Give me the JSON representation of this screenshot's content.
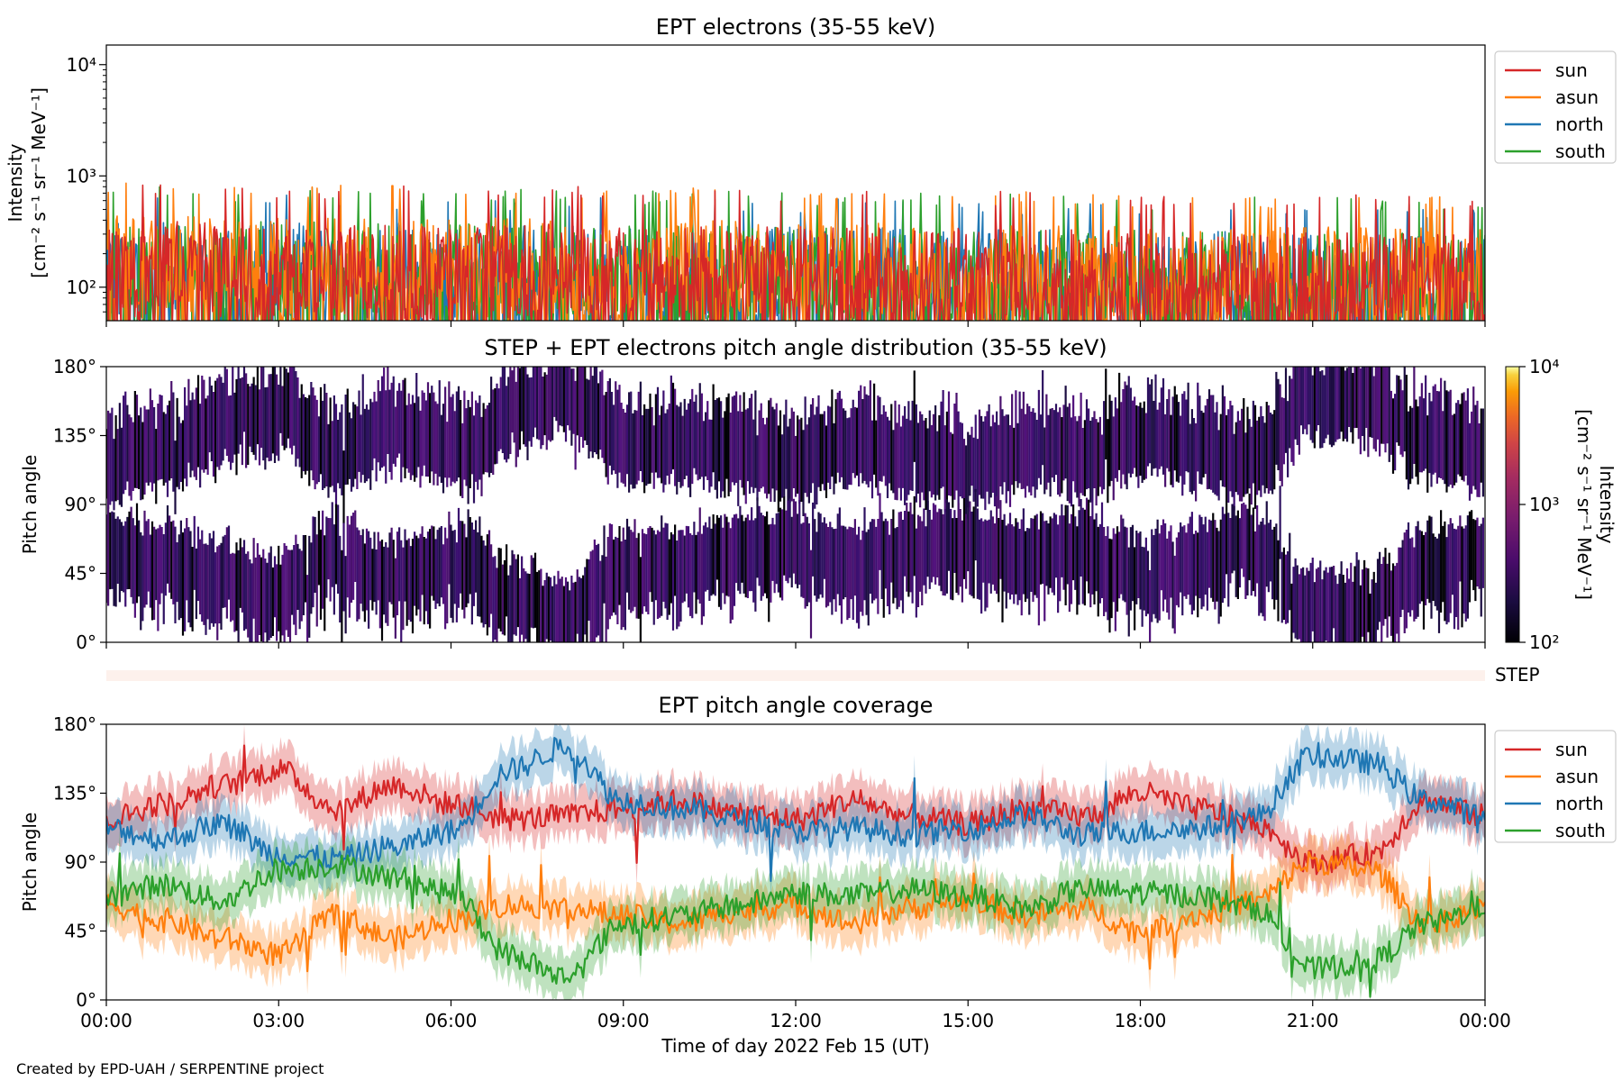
{
  "credit": "Created by EPD-UAH / SERPENTINE project",
  "colors": {
    "sun": "#d62728",
    "asun": "#ff7f0e",
    "north": "#1f77b4",
    "south": "#2ca02c"
  },
  "chart_data": [
    {
      "type": "line",
      "title": "EPT electrons (35-55 keV)",
      "ylabel_lines": [
        "Intensity",
        "[cm⁻² s⁻¹ sr⁻¹ MeV⁻¹]"
      ],
      "yscale": "log",
      "ylim": [
        50,
        15000
      ],
      "yticks": [
        {
          "label": "10²",
          "value": 100
        },
        {
          "label": "10³",
          "value": 1000
        },
        {
          "label": "10⁴",
          "value": 10000
        }
      ],
      "x_hours": [
        0,
        24
      ],
      "legend": {
        "placement": "right-outside-top",
        "entries": [
          "sun",
          "asun",
          "north",
          "south"
        ]
      },
      "series": [
        {
          "name": "sun",
          "typical_range": [
            80,
            400
          ],
          "peak": 800
        },
        {
          "name": "asun",
          "typical_range": [
            80,
            450
          ],
          "peak": 800
        },
        {
          "name": "north",
          "typical_range": [
            60,
            400
          ],
          "peak": 650
        },
        {
          "name": "south",
          "typical_range": [
            60,
            400
          ],
          "peak": 750
        }
      ]
    },
    {
      "type": "heatmap",
      "title": "STEP + EPT electrons pitch angle distribution (35-55 keV)",
      "ylabel": "Pitch angle",
      "ylim": [
        0,
        180
      ],
      "yticks": [
        "0°",
        "45°",
        "90°",
        "135°",
        "180°"
      ],
      "x_hours": [
        0,
        24
      ],
      "colorbar": {
        "label_lines": [
          "Intensity",
          "[cm⁻² s⁻¹ sr⁻¹ MeV⁻¹]"
        ],
        "scale": "log",
        "range": [
          100,
          10000
        ],
        "ticks": [
          "10²",
          "10³",
          "10⁴"
        ]
      }
    },
    {
      "type": "bar",
      "label": "STEP",
      "x_hours": [
        0,
        24
      ]
    },
    {
      "type": "line",
      "title": "EPT pitch angle coverage",
      "ylabel": "Pitch angle",
      "ylim": [
        0,
        180
      ],
      "yticks": [
        "0°",
        "45°",
        "90°",
        "135°",
        "180°"
      ],
      "xlabel": "Time of day 2022 Feb 15 (UT)",
      "xticks": [
        "00:00",
        "03:00",
        "06:00",
        "09:00",
        "12:00",
        "15:00",
        "18:00",
        "21:00",
        "00:00"
      ],
      "legend": {
        "placement": "right-outside-top",
        "entries": [
          "sun",
          "asun",
          "north",
          "south"
        ]
      },
      "series": [
        {
          "name": "sun",
          "knots_hours": [
            0,
            1,
            2,
            3,
            4,
            5,
            6,
            7,
            8,
            9,
            10,
            11,
            12,
            13,
            14,
            15,
            16,
            17,
            18,
            19,
            20,
            21,
            22,
            23,
            24
          ],
          "knots_deg": [
            118,
            128,
            140,
            150,
            125,
            140,
            128,
            118,
            120,
            125,
            130,
            122,
            118,
            130,
            120,
            115,
            125,
            120,
            135,
            125,
            115,
            90,
            95,
            130,
            120
          ]
        },
        {
          "name": "asun",
          "knots_hours": [
            0,
            1,
            2,
            3,
            4,
            5,
            6,
            7,
            8,
            9,
            10,
            11,
            12,
            13,
            14,
            15,
            16,
            17,
            18,
            19,
            20,
            21,
            22,
            23,
            24
          ],
          "knots_deg": [
            62,
            52,
            40,
            30,
            55,
            40,
            52,
            62,
            60,
            55,
            50,
            58,
            62,
            50,
            60,
            65,
            55,
            60,
            45,
            55,
            65,
            90,
            85,
            50,
            60
          ]
        },
        {
          "name": "north",
          "knots_hours": [
            0,
            1,
            2,
            3,
            4,
            5,
            6,
            7,
            8,
            9,
            10,
            11,
            12,
            13,
            14,
            15,
            16,
            17,
            18,
            19,
            20,
            21,
            22,
            23,
            24
          ],
          "knots_deg": [
            112,
            105,
            115,
            95,
            92,
            100,
            110,
            150,
            165,
            130,
            125,
            118,
            110,
            112,
            108,
            112,
            120,
            108,
            110,
            112,
            120,
            160,
            155,
            130,
            120
          ]
        },
        {
          "name": "south",
          "knots_hours": [
            0,
            1,
            2,
            3,
            4,
            5,
            6,
            7,
            8,
            9,
            10,
            11,
            12,
            13,
            14,
            15,
            16,
            17,
            18,
            19,
            20,
            21,
            22,
            23,
            24
          ],
          "knots_deg": [
            68,
            75,
            65,
            85,
            88,
            80,
            70,
            30,
            15,
            50,
            55,
            62,
            70,
            68,
            72,
            68,
            60,
            72,
            70,
            68,
            60,
            20,
            25,
            50,
            60
          ]
        }
      ]
    }
  ]
}
